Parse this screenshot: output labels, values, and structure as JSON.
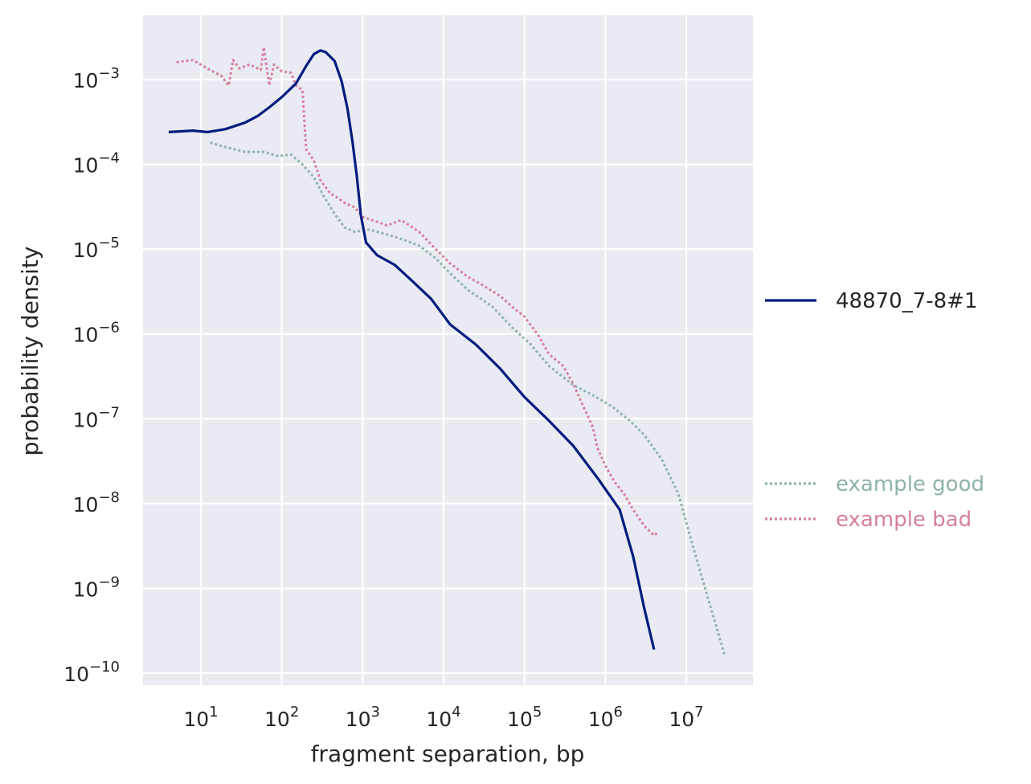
{
  "chart_data": {
    "type": "line",
    "xlabel": "fragment separation, bp",
    "ylabel": "probability density",
    "xscale": "log",
    "yscale": "log",
    "xlim": [
      2,
      60000000
    ],
    "ylim": [
      7e-11,
      0.006
    ],
    "grid": true,
    "background": "#eaeaf2",
    "x_ticks": [
      {
        "value": 10,
        "base": "10",
        "exp": "1"
      },
      {
        "value": 100,
        "base": "10",
        "exp": "2"
      },
      {
        "value": 1000,
        "base": "10",
        "exp": "3"
      },
      {
        "value": 10000,
        "base": "10",
        "exp": "4"
      },
      {
        "value": 100000,
        "base": "10",
        "exp": "5"
      },
      {
        "value": 1000000,
        "base": "10",
        "exp": "6"
      },
      {
        "value": 10000000,
        "base": "10",
        "exp": "7"
      }
    ],
    "y_ticks": [
      {
        "value": 0.001,
        "base": "10",
        "exp": "−3"
      },
      {
        "value": 0.0001,
        "base": "10",
        "exp": "−4"
      },
      {
        "value": 1e-05,
        "base": "10",
        "exp": "−5"
      },
      {
        "value": 1e-06,
        "base": "10",
        "exp": "−6"
      },
      {
        "value": 1e-07,
        "base": "10",
        "exp": "−7"
      },
      {
        "value": 1e-08,
        "base": "10",
        "exp": "−8"
      },
      {
        "value": 1e-09,
        "base": "10",
        "exp": "−9"
      },
      {
        "value": 1e-10,
        "base": "10",
        "exp": "−10"
      }
    ],
    "series": [
      {
        "name": "48870_7-8#1",
        "color": "#001c7f",
        "style": "solid",
        "points": [
          [
            4,
            0.00024
          ],
          [
            8,
            0.00025
          ],
          [
            12,
            0.00024
          ],
          [
            20,
            0.00026
          ],
          [
            35,
            0.00031
          ],
          [
            50,
            0.00037
          ],
          [
            70,
            0.00047
          ],
          [
            100,
            0.00062
          ],
          [
            150,
            0.0009
          ],
          [
            200,
            0.00145
          ],
          [
            250,
            0.002
          ],
          [
            300,
            0.0022
          ],
          [
            350,
            0.0021
          ],
          [
            450,
            0.00165
          ],
          [
            550,
            0.00095
          ],
          [
            650,
            0.00045
          ],
          [
            750,
            0.00018
          ],
          [
            850,
            7e-05
          ],
          [
            950,
            2.5e-05
          ],
          [
            1100,
            1.2e-05
          ],
          [
            1500,
            8.5e-06
          ],
          [
            2500,
            6.5e-06
          ],
          [
            4000,
            4.3e-06
          ],
          [
            7000,
            2.6e-06
          ],
          [
            12000,
            1.3e-06
          ],
          [
            25000,
            7.5e-07
          ],
          [
            50000,
            3.9e-07
          ],
          [
            100000,
            1.8e-07
          ],
          [
            200000,
            9.5e-08
          ],
          [
            400000,
            4.8e-08
          ],
          [
            800000,
            2e-08
          ],
          [
            1500000,
            8.5e-09
          ],
          [
            2200000,
            2.4e-09
          ],
          [
            3000000,
            6e-10
          ],
          [
            4000000,
            1.9e-10
          ]
        ]
      },
      {
        "name": "example good",
        "color": "#8fb2ad",
        "style": "dotted",
        "points": [
          [
            13,
            0.00018
          ],
          [
            20,
            0.00016
          ],
          [
            35,
            0.00014
          ],
          [
            60,
            0.00014
          ],
          [
            90,
            0.000125
          ],
          [
            130,
            0.00013
          ],
          [
            180,
            0.0001
          ],
          [
            250,
            7e-05
          ],
          [
            330,
            4.2e-05
          ],
          [
            450,
            2.6e-05
          ],
          [
            600,
            1.8e-05
          ],
          [
            800,
            1.6e-05
          ],
          [
            1200,
            1.7e-05
          ],
          [
            2500,
            1.4e-05
          ],
          [
            5000,
            1.1e-05
          ],
          [
            8000,
            7.8e-06
          ],
          [
            12000,
            5.2e-06
          ],
          [
            20000,
            3.3e-06
          ],
          [
            40000,
            2.1e-06
          ],
          [
            70000,
            1.2e-06
          ],
          [
            120000,
            7.5e-07
          ],
          [
            200000,
            4.2e-07
          ],
          [
            400000,
            2.5e-07
          ],
          [
            700000,
            1.9e-07
          ],
          [
            1200000,
            1.4e-07
          ],
          [
            2000000,
            9.5e-08
          ],
          [
            3000000,
            6.5e-08
          ],
          [
            5000000,
            3.3e-08
          ],
          [
            8000000,
            1.3e-08
          ],
          [
            12000000,
            3.2e-09
          ],
          [
            18000000,
            8.5e-10
          ],
          [
            30000000,
            1.6e-10
          ]
        ]
      },
      {
        "name": "example bad",
        "color": "#d5809e",
        "style": "dotted",
        "points": [
          [
            5,
            0.0016
          ],
          [
            8,
            0.0017
          ],
          [
            12,
            0.00135
          ],
          [
            18,
            0.0011
          ],
          [
            22,
            0.00085
          ],
          [
            25,
            0.0017
          ],
          [
            30,
            0.00135
          ],
          [
            40,
            0.0015
          ],
          [
            55,
            0.0013
          ],
          [
            60,
            0.0024
          ],
          [
            70,
            0.00085
          ],
          [
            80,
            0.0015
          ],
          [
            100,
            0.00125
          ],
          [
            130,
            0.0012
          ],
          [
            150,
            0.00085
          ],
          [
            180,
            0.00075
          ],
          [
            200,
            0.00015
          ],
          [
            250,
            0.00011
          ],
          [
            300,
            6.5e-05
          ],
          [
            400,
            4.5e-05
          ],
          [
            500,
            4e-05
          ],
          [
            600,
            3.5e-05
          ],
          [
            800,
            3.1e-05
          ],
          [
            1000,
            2.4e-05
          ],
          [
            1500,
            2.1e-05
          ],
          [
            2000,
            1.9e-05
          ],
          [
            3000,
            2.2e-05
          ],
          [
            5000,
            1.6e-05
          ],
          [
            8000,
            1e-05
          ],
          [
            12000,
            6.8e-06
          ],
          [
            20000,
            4.7e-06
          ],
          [
            30000,
            3.8e-06
          ],
          [
            50000,
            2.8e-06
          ],
          [
            70000,
            2.1e-06
          ],
          [
            100000,
            1.6e-06
          ],
          [
            150000,
            9.5e-07
          ],
          [
            200000,
            5.8e-07
          ],
          [
            300000,
            4.2e-07
          ],
          [
            400000,
            2.6e-07
          ],
          [
            500000,
            1.6e-07
          ],
          [
            600000,
            1.1e-07
          ],
          [
            700000,
            8e-08
          ],
          [
            800000,
            4.5e-08
          ],
          [
            1000000,
            2.8e-08
          ],
          [
            1300000,
            1.8e-08
          ],
          [
            1700000,
            1.3e-08
          ],
          [
            2200000,
            8.5e-09
          ],
          [
            3000000,
            5.5e-09
          ],
          [
            4000000,
            4.2e-09
          ],
          [
            4500000,
            4.6e-09
          ]
        ]
      }
    ],
    "legend": [
      {
        "label": "48870_7-8#1",
        "color": "#262626",
        "line_color": "#001c7f",
        "style": "solid"
      },
      {
        "label": "example good",
        "color": "#8fb2ad",
        "line_color": "#8fb2ad",
        "style": "dotted"
      },
      {
        "label": "example bad",
        "color": "#d5809e",
        "line_color": "#d5809e",
        "style": "dotted"
      }
    ]
  }
}
